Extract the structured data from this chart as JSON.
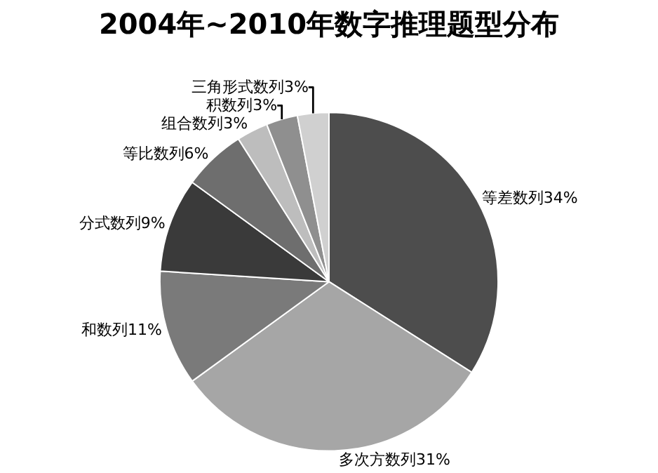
{
  "chart_data": {
    "type": "pie",
    "title": "2004年~2010年数字推理题型分布",
    "categories": [
      "等差数列",
      "多次方数列",
      "和数列",
      "分式数列",
      "等比数列",
      "组合数列",
      "积数列",
      "三角形式数列"
    ],
    "values": [
      34,
      31,
      11,
      9,
      6,
      3,
      3,
      3
    ],
    "value_labels": [
      "34%",
      "31%",
      "11%",
      "9%",
      "6%",
      "3%",
      "3%",
      "3%"
    ],
    "colors": [
      "#4d4d4d",
      "#a6a6a6",
      "#7a7a7a",
      "#3a3a3a",
      "#6e6e6e",
      "#bdbdbd",
      "#8f8f8f",
      "#d0d0d0"
    ],
    "legend": false
  }
}
